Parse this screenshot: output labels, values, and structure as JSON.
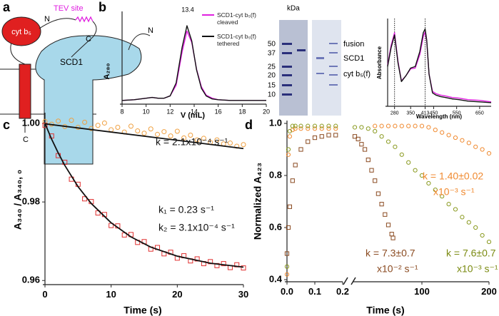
{
  "panel_labels": [
    "a",
    "b",
    "c",
    "d"
  ],
  "diagram": {
    "tev_label": "TEV site",
    "cyt_label": "cyt b₅",
    "cyt_n": "N",
    "cyt_c": "C",
    "scd1_label": "SCD1",
    "scd1_n": "N",
    "scd1_c": "C"
  },
  "gel": {
    "kda_label": "kDa",
    "markers": [
      "50",
      "37",
      "25",
      "20",
      "15",
      "10"
    ],
    "band_labels": [
      "fusion",
      "SCD1",
      "cyt b₅(f)"
    ]
  },
  "chart_data": [
    {
      "type": "line",
      "x_label": "V (mL)",
      "y_label": "A₂₈₀",
      "peak_label": "13.4",
      "xlim": [
        8,
        20
      ],
      "xticks": [
        8,
        10,
        12,
        14,
        16,
        18,
        20
      ],
      "ylim": [
        0,
        1.15
      ],
      "x": [
        8,
        9,
        10,
        10.5,
        11,
        11.5,
        12,
        12.5,
        13,
        13.4,
        13.8,
        14.2,
        14.6,
        15,
        15.5,
        16,
        17,
        18,
        19,
        20
      ],
      "series": [
        {
          "name": "SCD1-cyt b₅(f) cleaved",
          "color": "#e020e0",
          "values": [
            0.02,
            0.03,
            0.05,
            0.06,
            0.05,
            0.05,
            0.08,
            0.22,
            0.66,
            0.93,
            0.78,
            0.43,
            0.2,
            0.09,
            0.05,
            0.03,
            0.02,
            0.02,
            0.02,
            0.02
          ]
        },
        {
          "name": "SCD1-cyt b₅(f) tethered",
          "color": "#111111",
          "values": [
            0.02,
            0.03,
            0.05,
            0.06,
            0.05,
            0.05,
            0.08,
            0.25,
            0.72,
            1.0,
            0.8,
            0.42,
            0.18,
            0.08,
            0.04,
            0.03,
            0.02,
            0.02,
            0.02,
            0.02
          ]
        }
      ]
    },
    {
      "type": "line",
      "x_label": "Wavelength (nm)",
      "y_label": "Absorbance",
      "xlim": [
        250,
        700
      ],
      "xticks": [
        280,
        350,
        413,
        450,
        550,
        650
      ],
      "ylim": [
        0,
        1.1
      ],
      "reference_lines": [
        280,
        413
      ],
      "x": [
        250,
        265,
        280,
        295,
        310,
        330,
        350,
        370,
        390,
        405,
        413,
        420,
        430,
        445,
        460,
        480,
        500,
        530,
        560,
        600,
        650,
        700
      ],
      "series": [
        {
          "color": "#e020e0",
          "values": [
            0.52,
            0.78,
            0.95,
            0.57,
            0.31,
            0.38,
            0.47,
            0.48,
            0.66,
            0.9,
            0.96,
            0.83,
            0.4,
            0.17,
            0.14,
            0.12,
            0.11,
            0.09,
            0.08,
            0.06,
            0.05,
            0.03
          ]
        },
        {
          "color": "#111111",
          "values": [
            0.5,
            0.75,
            0.92,
            0.55,
            0.3,
            0.38,
            0.48,
            0.5,
            0.7,
            0.95,
            1.0,
            0.85,
            0.4,
            0.15,
            0.12,
            0.1,
            0.09,
            0.07,
            0.06,
            0.04,
            0.03,
            0.02
          ]
        }
      ]
    },
    {
      "type": "scatter",
      "x_label": "Time (s)",
      "y_label": "A₃₄₀ / A₃₄₀, ₀",
      "xlim": [
        0,
        30
      ],
      "xticks": [
        0,
        10,
        20,
        30
      ],
      "ylim": [
        0.9595,
        1.002
      ],
      "yticks": [
        0.96,
        0.98,
        {
          "value": 1,
          "label": "1.00"
        }
      ],
      "series": [
        {
          "color": "#f0a040",
          "marker": "circle",
          "x": [
            0,
            1,
            2,
            3,
            4,
            5,
            6,
            7,
            8,
            9,
            10,
            11,
            12,
            13,
            14,
            15,
            16,
            17,
            18,
            19,
            20,
            21,
            22,
            23,
            24,
            25,
            26,
            27,
            28,
            29,
            30
          ],
          "values": [
            1.0005,
            0.9998,
            1.0006,
            0.9992,
            1.0008,
            0.999,
            1.0003,
            0.9987,
            0.9995,
            1.0001,
            0.9984,
            0.999,
            0.9978,
            0.9993,
            0.9981,
            0.9975,
            0.9986,
            0.9972,
            0.9979,
            0.9968,
            0.998,
            0.9963,
            0.997,
            0.9958,
            0.9962,
            0.9952,
            0.9958,
            0.9948,
            0.995,
            0.9942,
            0.9946
          ]
        },
        {
          "color": "#e03030",
          "marker": "square",
          "x": [
            0,
            1,
            2,
            3,
            4,
            5,
            6,
            7,
            8,
            9,
            10,
            11,
            12,
            13,
            14,
            15,
            16,
            17,
            18,
            19,
            20,
            21,
            22,
            23,
            24,
            25,
            26,
            27,
            28,
            29,
            30
          ],
          "values": [
            0.9995,
            0.9968,
            0.9918,
            0.9901,
            0.9858,
            0.9845,
            0.9808,
            0.9801,
            0.9772,
            0.9768,
            0.974,
            0.9739,
            0.9716,
            0.9717,
            0.9697,
            0.9699,
            0.968,
            0.9684,
            0.9668,
            0.9672,
            0.9657,
            0.9663,
            0.965,
            0.9655,
            0.9643,
            0.9648,
            0.9638,
            0.9643,
            0.9633,
            0.964,
            0.9632
          ]
        },
        {
          "color": "#111111",
          "x": [
            0,
            30
          ],
          "values": [
            0.9999,
            0.9936
          ]
        },
        {
          "color": "#111111",
          "x": [
            0,
            1,
            2,
            3,
            5,
            7,
            10,
            13,
            16,
            20,
            25,
            30
          ],
          "values": [
            1.0,
            0.996,
            0.9925,
            0.9893,
            0.9839,
            0.9796,
            0.9747,
            0.9711,
            0.9685,
            0.9662,
            0.9644,
            0.9634
          ]
        }
      ],
      "annotations": [
        {
          "text": "k = 2.1x10⁻⁴ s⁻¹"
        },
        {
          "text": "k₁ = 0.23 s⁻¹"
        },
        {
          "text": "k₂ = 3.1x10⁻⁴ s⁻¹"
        }
      ]
    },
    {
      "type": "scatter",
      "y_label": "Normalized A₄₂₃",
      "xlim": [
        0,
        0.2
      ],
      "xticks": [
        {
          "value": 0,
          "label": "0.0"
        },
        0.1,
        0.2
      ],
      "ylim": [
        0.4,
        1.0
      ],
      "yticks": [
        0.4,
        0.6,
        0.8,
        {
          "value": 1,
          "label": "1.0"
        }
      ],
      "x": [
        0,
        0.005,
        0.01,
        0.02,
        0.03,
        0.05,
        0.075,
        0.1,
        0.125,
        0.15,
        0.175
      ],
      "series": [
        {
          "color": "#f08a30",
          "marker": "circle",
          "values": [
            0.42,
            0.88,
            0.95,
            0.975,
            0.98,
            0.98,
            0.98,
            0.98,
            0.98,
            0.98,
            0.98
          ]
        },
        {
          "color": "#8a9a20",
          "marker": "circle",
          "values": [
            0.45,
            0.9,
            0.97,
            0.99,
            0.99,
            0.99,
            0.99,
            0.99,
            0.99,
            0.99,
            0.99
          ]
        },
        {
          "color": "#8a4a20",
          "marker": "square",
          "values": [
            0.5,
            0.6,
            0.68,
            0.78,
            0.84,
            0.9,
            0.93,
            0.945,
            0.95,
            0.955,
            0.955
          ]
        }
      ]
    },
    {
      "type": "scatter",
      "x_label": "Time (s)",
      "xlim": [
        0,
        200
      ],
      "xticks": [
        100,
        200
      ],
      "ylim": [
        0.4,
        1.0
      ],
      "series": [
        {
          "color": "#f08a30",
          "marker": "circle",
          "x": [
            30,
            40,
            50,
            60,
            70,
            80,
            90,
            100,
            110,
            120,
            130,
            140,
            150,
            160,
            170,
            180,
            190,
            200
          ],
          "values": [
            0.99,
            0.99,
            0.99,
            0.99,
            0.99,
            0.99,
            0.99,
            0.99,
            0.985,
            0.975,
            0.965,
            0.955,
            0.945,
            0.935,
            0.925,
            0.91,
            0.9,
            0.885
          ]
        },
        {
          "color": "#8a9a20",
          "marker": "circle",
          "x": [
            0,
            10,
            20,
            30,
            40,
            50,
            60,
            70,
            80,
            90,
            100,
            110,
            120,
            130,
            140,
            150,
            160,
            170,
            180,
            190,
            200
          ],
          "values": [
            0.985,
            0.985,
            0.98,
            0.97,
            0.95,
            0.93,
            0.91,
            0.88,
            0.85,
            0.82,
            0.8,
            0.77,
            0.745,
            0.72,
            0.69,
            0.67,
            0.64,
            0.62,
            0.6,
            0.57,
            0.545
          ]
        },
        {
          "color": "#8a4a20",
          "marker": "square",
          "x": [
            0,
            5,
            10,
            15,
            20,
            25,
            30,
            35,
            40,
            45,
            50,
            55,
            57
          ],
          "values": [
            0.95,
            0.94,
            0.92,
            0.9,
            0.86,
            0.82,
            0.78,
            0.73,
            0.69,
            0.65,
            0.61,
            0.575,
            0.56
          ]
        }
      ],
      "annotations": [
        {
          "text": "k = 1.40±0.02",
          "color": "#f08a30"
        },
        {
          "text": "x10⁻³ s⁻¹",
          "color": "#f08a30"
        },
        {
          "text": "k = 7.3±0.7",
          "color": "#8a4a20"
        },
        {
          "text": "x10⁻² s⁻¹",
          "color": "#8a4a20"
        },
        {
          "text": "k = 7.6±0.7",
          "color": "#7a8a10"
        },
        {
          "text": "x10⁻³ s⁻¹",
          "color": "#7a8a10"
        }
      ]
    }
  ]
}
